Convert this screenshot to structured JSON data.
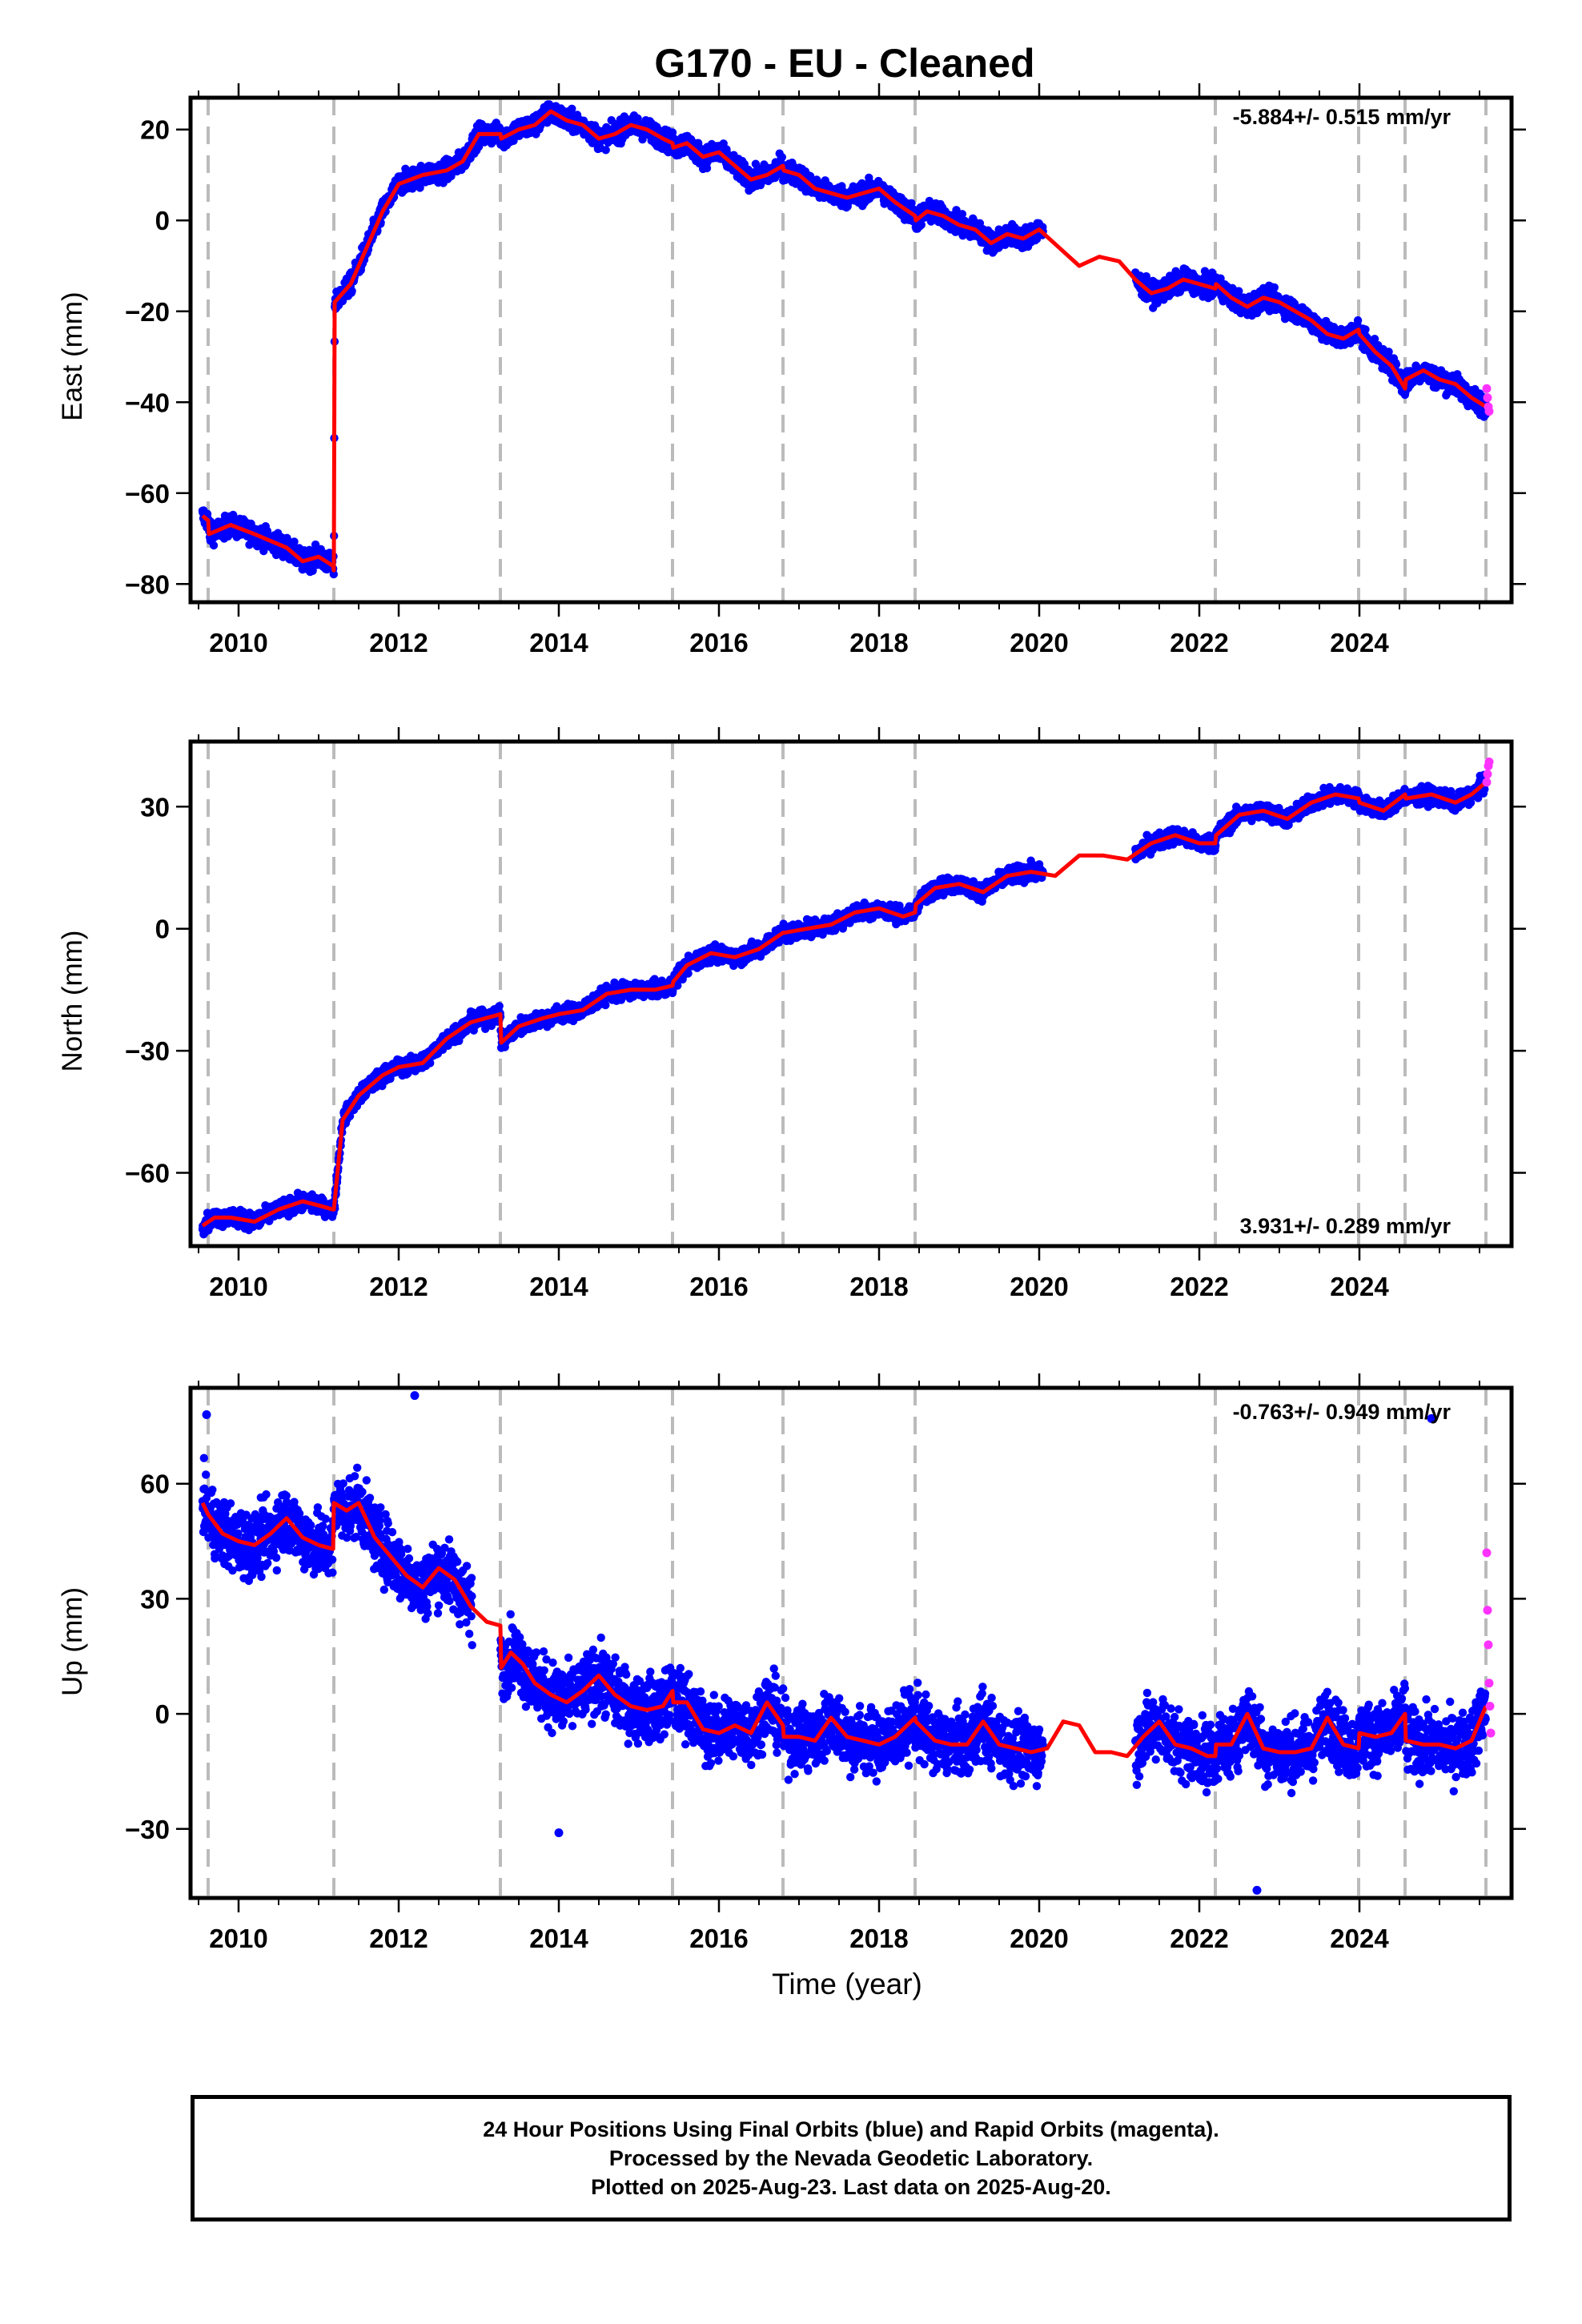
{
  "title": "G170  - EU - Cleaned",
  "colors": {
    "final_orbits": "#0000ff",
    "rapid_orbits": "#ff33ff",
    "model": "#ff0000",
    "equipment_lines": "#bbbbbb"
  },
  "xaxis": {
    "label": "Time (year)",
    "range": [
      2009.4,
      2025.9
    ],
    "ticks": [
      2010,
      2012,
      2014,
      2016,
      2018,
      2020,
      2022,
      2024
    ],
    "tick_labels": [
      "2010",
      "2012",
      "2014",
      "2016",
      "2018",
      "2020",
      "2022",
      "2024"
    ]
  },
  "event_lines": [
    2009.62,
    2011.19,
    2013.27,
    2015.42,
    2016.8,
    2018.45,
    2022.2,
    2023.99,
    2024.57,
    2025.58
  ],
  "footer": {
    "line1": "24 Hour Positions Using Final Orbits (blue) and Rapid Orbits (magenta).",
    "line2": "Processed by the Nevada Geodetic Laboratory.",
    "line3": "Plotted on 2025-Aug-23. Last data on 2025-Aug-20."
  },
  "chart_data": [
    {
      "type": "scatter",
      "ylabel": "East (mm)",
      "rate": "-5.884+/- 0.515 mm/yr",
      "rate_position": "top-right",
      "ylim": [
        -84,
        27
      ],
      "yticks": [
        20,
        0,
        -20,
        -40,
        -60,
        -80
      ],
      "ytick_labels": [
        "20",
        "0",
        "−20",
        "−40",
        "−60",
        "−80"
      ],
      "noise_mm": 1.6,
      "gaps": [
        [
          2020.05,
          2021.2
        ]
      ],
      "series": [
        {
          "name": "Model",
          "x": [
            2009.55,
            2009.62,
            2009.63,
            2009.9,
            2010.2,
            2010.6,
            2010.8,
            2011.0,
            2011.18,
            2011.19,
            2011.2,
            2011.4,
            2011.6,
            2011.8,
            2012.0,
            2012.3,
            2012.6,
            2012.8,
            2013.0,
            2013.27,
            2013.28,
            2013.5,
            2013.7,
            2013.9,
            2014.1,
            2014.3,
            2014.5,
            2014.7,
            2014.9,
            2015.1,
            2015.3,
            2015.42,
            2015.43,
            2015.6,
            2015.8,
            2016.0,
            2016.2,
            2016.4,
            2016.6,
            2016.8,
            2016.81,
            2017.0,
            2017.2,
            2017.4,
            2017.6,
            2017.8,
            2018.0,
            2018.2,
            2018.45,
            2018.46,
            2018.6,
            2018.8,
            2019.0,
            2019.2,
            2019.4,
            2019.6,
            2019.8,
            2020.0,
            2020.25,
            2020.5,
            2020.75,
            2021.0,
            2021.2,
            2021.4,
            2021.6,
            2021.8,
            2022.0,
            2022.2,
            2022.21,
            2022.4,
            2022.6,
            2022.8,
            2023.0,
            2023.2,
            2023.4,
            2023.6,
            2023.8,
            2023.99,
            2024.0,
            2024.2,
            2024.4,
            2024.57,
            2024.58,
            2024.8,
            2025.0,
            2025.2,
            2025.4,
            2025.58
          ],
          "values": [
            -65,
            -66,
            -69,
            -67,
            -69,
            -72,
            -75,
            -74,
            -76,
            -77,
            -18,
            -14,
            -6,
            2,
            8,
            10,
            11,
            13,
            19,
            19,
            18,
            20,
            21,
            24,
            22,
            21,
            18,
            19,
            21,
            20,
            18,
            17,
            16,
            17,
            14,
            15,
            12,
            9,
            10,
            12,
            11,
            10,
            7,
            6,
            5,
            6,
            7,
            4,
            1,
            0,
            2,
            1,
            -1,
            -2,
            -5,
            -3,
            -4,
            -2,
            -6,
            -10,
            -8,
            -9,
            -13,
            -16,
            -15,
            -13,
            -14,
            -15,
            -14,
            -17,
            -19,
            -17,
            -18,
            -20,
            -22,
            -25,
            -26,
            -24,
            -25,
            -29,
            -32,
            -37,
            -35,
            -33,
            -35,
            -36,
            -39,
            -41
          ]
        },
        {
          "name": "Rapid",
          "x": [
            2025.59,
            2025.6,
            2025.61,
            2025.62
          ],
          "values": [
            -37,
            -39,
            -41,
            -42
          ]
        }
      ]
    },
    {
      "type": "scatter",
      "ylabel": "North (mm)",
      "rate": "3.931+/- 0.289 mm/yr",
      "rate_position": "bottom-right",
      "ylim": [
        -78,
        46
      ],
      "yticks": [
        30,
        0,
        -30,
        -60
      ],
      "ytick_labels": [
        "30",
        "0",
        "−30",
        "−60"
      ],
      "noise_mm": 1.4,
      "gaps": [
        [
          2020.05,
          2021.2
        ]
      ],
      "series": [
        {
          "name": "Model",
          "x": [
            2009.55,
            2009.7,
            2009.9,
            2010.2,
            2010.5,
            2010.8,
            2011.0,
            2011.18,
            2011.19,
            2011.3,
            2011.5,
            2011.8,
            2012.0,
            2012.3,
            2012.6,
            2012.9,
            2013.27,
            2013.28,
            2013.5,
            2013.8,
            2014.0,
            2014.3,
            2014.6,
            2014.9,
            2015.2,
            2015.42,
            2015.43,
            2015.6,
            2015.9,
            2016.2,
            2016.5,
            2016.8,
            2016.81,
            2017.1,
            2017.4,
            2017.7,
            2018.0,
            2018.3,
            2018.45,
            2018.46,
            2018.7,
            2019.0,
            2019.3,
            2019.6,
            2019.9,
            2020.2,
            2020.5,
            2020.8,
            2021.1,
            2021.4,
            2021.7,
            2022.0,
            2022.2,
            2022.21,
            2022.5,
            2022.8,
            2023.1,
            2023.4,
            2023.7,
            2023.99,
            2024.0,
            2024.3,
            2024.57,
            2024.58,
            2024.9,
            2025.2,
            2025.4,
            2025.58
          ],
          "values": [
            -73,
            -71,
            -71,
            -72,
            -69,
            -67,
            -68,
            -69,
            -69,
            -47,
            -41,
            -36,
            -34,
            -33,
            -27,
            -23,
            -21,
            -28,
            -24,
            -22,
            -21,
            -20,
            -16,
            -15,
            -15,
            -14,
            -13,
            -9,
            -6,
            -7,
            -5,
            -1,
            -1,
            0,
            1,
            4,
            5,
            3,
            4,
            6,
            10,
            11,
            9,
            13,
            14,
            13,
            18,
            18,
            17,
            21,
            23,
            21,
            21,
            23,
            28,
            29,
            27,
            31,
            33,
            32,
            31,
            29,
            33,
            32,
            33,
            31,
            33,
            36
          ]
        },
        {
          "name": "Rapid",
          "x": [
            2025.59,
            2025.6,
            2025.61,
            2025.62
          ],
          "values": [
            36,
            38,
            40,
            41
          ]
        }
      ]
    },
    {
      "type": "scatter",
      "ylabel": "Up (mm)",
      "xlabel": "Time (year)",
      "rate": "-0.763+/- 0.949 mm/yr",
      "rate_position": "top-right",
      "ylim": [
        -48,
        85
      ],
      "yticks": [
        60,
        30,
        0,
        -30
      ],
      "ytick_labels": [
        "60",
        "30",
        "0",
        "−30"
      ],
      "noise_mm": 6.0,
      "gaps": [
        [
          2012.92,
          2013.27
        ],
        [
          2020.05,
          2021.2
        ]
      ],
      "series": [
        {
          "name": "Model",
          "x": [
            2009.55,
            2009.62,
            2009.8,
            2010.0,
            2010.2,
            2010.4,
            2010.6,
            2010.8,
            2011.0,
            2011.18,
            2011.19,
            2011.35,
            2011.5,
            2011.7,
            2011.9,
            2012.1,
            2012.3,
            2012.5,
            2012.7,
            2012.9,
            2013.1,
            2013.27,
            2013.28,
            2013.4,
            2013.55,
            2013.7,
            2013.9,
            2014.1,
            2014.3,
            2014.5,
            2014.7,
            2014.9,
            2015.1,
            2015.3,
            2015.42,
            2015.43,
            2015.6,
            2015.8,
            2016.0,
            2016.2,
            2016.4,
            2016.6,
            2016.8,
            2016.81,
            2017.0,
            2017.2,
            2017.4,
            2017.6,
            2017.8,
            2018.0,
            2018.2,
            2018.45,
            2018.46,
            2018.7,
            2018.9,
            2019.1,
            2019.3,
            2019.5,
            2019.7,
            2019.9,
            2020.1,
            2020.3,
            2020.5,
            2020.7,
            2020.9,
            2021.1,
            2021.3,
            2021.5,
            2021.7,
            2021.9,
            2022.1,
            2022.2,
            2022.21,
            2022.4,
            2022.6,
            2022.8,
            2023.0,
            2023.2,
            2023.4,
            2023.6,
            2023.8,
            2023.99,
            2024.0,
            2024.2,
            2024.4,
            2024.57,
            2024.58,
            2024.8,
            2025.0,
            2025.2,
            2025.4,
            2025.58
          ],
          "values": [
            55,
            52,
            47,
            45,
            44,
            47,
            51,
            46,
            44,
            43,
            55,
            53,
            55,
            46,
            41,
            36,
            33,
            38,
            35,
            28,
            24,
            23,
            12,
            16,
            13,
            8,
            5,
            3,
            6,
            10,
            5,
            2,
            1,
            2,
            6,
            3,
            3,
            -4,
            -5,
            -3,
            -5,
            3,
            -3,
            -6,
            -6,
            -7,
            -1,
            -6,
            -7,
            -8,
            -6,
            -1,
            -2,
            -7,
            -8,
            -8,
            -2,
            -8,
            -9,
            -10,
            -9,
            -2,
            -3,
            -10,
            -10,
            -11,
            -6,
            -2,
            -8,
            -9,
            -11,
            -11,
            -8,
            -8,
            0,
            -9,
            -10,
            -10,
            -9,
            -1,
            -8,
            -9,
            -5,
            -6,
            -5,
            0,
            -7,
            -8,
            -8,
            -9,
            -7,
            2
          ]
        },
        {
          "name": "Rapid",
          "x": [
            2025.59,
            2025.6,
            2025.61,
            2025.62,
            2025.63,
            2025.64
          ],
          "values": [
            42,
            27,
            18,
            8,
            2,
            -5
          ]
        },
        {
          "name": "Outliers",
          "x": [
            2009.6,
            2012.2,
            2024.9,
            2022.72,
            2014.0
          ],
          "values": [
            78,
            83,
            77,
            -46,
            -31
          ]
        }
      ]
    }
  ]
}
